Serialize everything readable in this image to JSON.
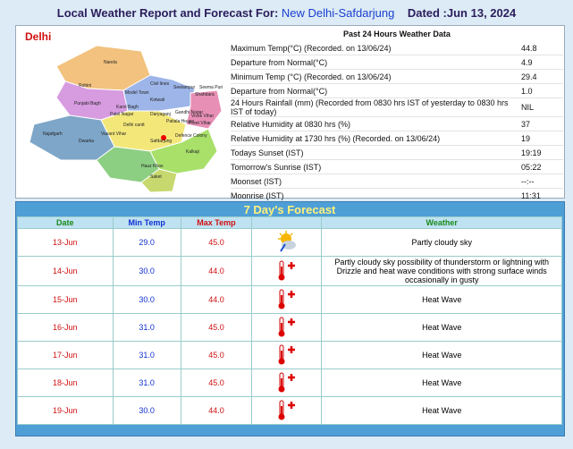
{
  "header": {
    "title": "Local Weather Report and Forecast For:",
    "station": "New Delhi-Safdarjung",
    "dated": "Dated :Jun 13, 2024"
  },
  "map": {
    "title": "Delhi",
    "districts": [
      "Narela",
      "Rohini",
      "Model Town",
      "Civil lines",
      "Seelampur",
      "Shahdara",
      "Seema Puri",
      "Punjabi Bagh",
      "Karol Bagh",
      "Kotwali",
      "Patel Nagar",
      "Daryaganj",
      "Gandhi Nagar",
      "Preet Vihar",
      "Vivek Vihar",
      "Najafgarh",
      "Delhi cantt",
      "Patiala House",
      "Dwarka",
      "Vasant Vihar",
      "Safdarjung",
      "Defence Colony",
      "Kalkaji",
      "Hauz Khas",
      "Saket"
    ]
  },
  "past_24_hours": {
    "title": "Past 24 Hours Weather Data",
    "rows": [
      [
        "Maximum Temp(°C) (Recorded. on 13/06/24)",
        "44.8"
      ],
      [
        "Departure from Normal(°C)",
        "4.9"
      ],
      [
        "Minimum Temp (°C) (Recorded. on 13/06/24)",
        "29.4"
      ],
      [
        "Departure from Normal(°C)",
        "1.0"
      ],
      [
        "24 Hours Rainfall (mm) (Recorded from 0830 hrs IST of yesterday to 0830 hrs IST of today)",
        "NIL"
      ],
      [
        "Relative Humidity at 0830 hrs (%)",
        "37"
      ],
      [
        "Relative Humidity at 1730 hrs (%) (Recorded. on 13/06/24)",
        "19"
      ],
      [
        "Todays Sunset (IST)",
        "19:19"
      ],
      [
        "Tomorrow's Sunrise (IST)",
        "05:22"
      ],
      [
        "Moonset (IST)",
        "--:--"
      ],
      [
        "Moonrise (IST)",
        "11:31"
      ]
    ]
  },
  "forecast": {
    "title": "7 Day's Forecast",
    "columns": [
      "Date",
      "Min Temp",
      "Max Temp",
      "Weather"
    ],
    "rows": [
      [
        "13-Jun",
        "29.0",
        "45.0",
        "Partly cloudy sky"
      ],
      [
        "14-Jun",
        "30.0",
        "44.0",
        "Partly cloudy sky possibility of thunderstorm or lightning with Drizzle and heat wave conditions with strong surface winds occasionally in gusty"
      ],
      [
        "15-Jun",
        "30.0",
        "44.0",
        "Heat Wave"
      ],
      [
        "16-Jun",
        "31.0",
        "45.0",
        "Heat Wave"
      ],
      [
        "17-Jun",
        "31.0",
        "45.0",
        "Heat Wave"
      ],
      [
        "18-Jun",
        "31.0",
        "45.0",
        "Heat Wave"
      ],
      [
        "19-Jun",
        "30.0",
        "44.0",
        "Heat Wave"
      ]
    ]
  }
}
